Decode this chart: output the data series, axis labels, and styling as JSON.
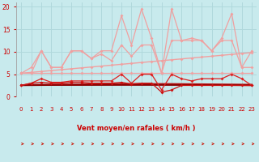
{
  "xlabel": "Vent moyen/en rafales ( km/h )",
  "bg_color": "#c8eaed",
  "grid_color": "#b0d8dc",
  "xlim": [
    -0.5,
    23.5
  ],
  "ylim": [
    0,
    21
  ],
  "yticks": [
    0,
    5,
    10,
    15,
    20
  ],
  "xticks": [
    0,
    1,
    2,
    3,
    4,
    5,
    6,
    7,
    8,
    9,
    10,
    11,
    12,
    13,
    14,
    15,
    16,
    17,
    18,
    19,
    20,
    21,
    22,
    23
  ],
  "series": [
    {
      "label": "rafales_spike",
      "color": "#f0a0a0",
      "lw": 0.9,
      "marker": "D",
      "ms": 2.0,
      "values": [
        5.2,
        6.5,
        10.2,
        6.5,
        6.5,
        10.2,
        10.2,
        8.5,
        10.2,
        10.2,
        18.0,
        11.5,
        19.5,
        13.0,
        5.2,
        19.5,
        12.5,
        13.0,
        12.5,
        10.2,
        13.0,
        18.5,
        6.5,
        10.2
      ]
    },
    {
      "label": "rafales_avg",
      "color": "#f0a0a0",
      "lw": 0.9,
      "marker": "D",
      "ms": 2.0,
      "values": [
        5.2,
        5.2,
        10.2,
        6.5,
        6.5,
        10.2,
        10.2,
        8.5,
        9.5,
        8.0,
        11.5,
        9.0,
        11.5,
        11.5,
        5.2,
        12.5,
        12.5,
        12.5,
        12.5,
        10.2,
        12.5,
        12.5,
        6.5,
        6.5
      ]
    },
    {
      "label": "rafales_trend",
      "color": "#f0a0a0",
      "lw": 1.0,
      "marker": "D",
      "ms": 2.0,
      "values": [
        5.2,
        5.4,
        5.6,
        5.8,
        6.0,
        6.2,
        6.4,
        6.6,
        6.8,
        7.0,
        7.2,
        7.4,
        7.6,
        7.8,
        8.0,
        8.2,
        8.4,
        8.6,
        8.8,
        9.0,
        9.2,
        9.4,
        9.6,
        9.8
      ]
    },
    {
      "label": "vent_flat",
      "color": "#f0a0a0",
      "lw": 0.9,
      "marker": "D",
      "ms": 2.0,
      "values": [
        5.2,
        5.2,
        5.2,
        5.2,
        5.2,
        5.2,
        5.2,
        5.2,
        5.2,
        5.2,
        5.2,
        5.2,
        5.2,
        5.2,
        5.2,
        5.2,
        5.2,
        5.2,
        5.2,
        5.2,
        5.2,
        5.2,
        5.2,
        5.2
      ]
    },
    {
      "label": "vent_moyen",
      "color": "#dd2222",
      "lw": 0.9,
      "marker": "D",
      "ms": 2.0,
      "values": [
        2.5,
        3.0,
        4.0,
        3.2,
        3.2,
        3.5,
        3.5,
        3.5,
        3.5,
        3.5,
        5.0,
        3.0,
        5.0,
        5.0,
        1.5,
        5.0,
        4.0,
        3.5,
        4.0,
        4.0,
        4.0,
        5.0,
        4.0,
        2.5
      ]
    },
    {
      "label": "vent_min",
      "color": "#cc1111",
      "lw": 0.9,
      "marker": "D",
      "ms": 2.0,
      "values": [
        2.5,
        3.0,
        3.2,
        3.0,
        3.0,
        3.2,
        3.2,
        3.0,
        3.0,
        3.0,
        3.2,
        2.8,
        3.0,
        3.0,
        1.0,
        1.5,
        2.5,
        2.5,
        2.5,
        2.5,
        2.5,
        2.5,
        2.5,
        2.5
      ]
    },
    {
      "label": "trend_dark1",
      "color": "#bb1111",
      "lw": 1.2,
      "marker": null,
      "ms": 0,
      "values": [
        2.6,
        2.65,
        2.7,
        2.72,
        2.74,
        2.76,
        2.78,
        2.8,
        2.82,
        2.84,
        2.86,
        2.86,
        2.86,
        2.86,
        2.86,
        2.86,
        2.84,
        2.82,
        2.8,
        2.78,
        2.76,
        2.74,
        2.72,
        2.7
      ]
    },
    {
      "label": "trend_dark2",
      "color": "#991111",
      "lw": 1.2,
      "marker": null,
      "ms": 0,
      "values": [
        2.5,
        2.52,
        2.54,
        2.56,
        2.58,
        2.6,
        2.62,
        2.64,
        2.66,
        2.68,
        2.7,
        2.7,
        2.7,
        2.7,
        2.68,
        2.66,
        2.64,
        2.62,
        2.6,
        2.58,
        2.56,
        2.54,
        2.52,
        2.5
      ]
    },
    {
      "label": "trend_dark3",
      "color": "#880000",
      "lw": 1.2,
      "marker": null,
      "ms": 0,
      "values": [
        2.5,
        2.5,
        2.5,
        2.5,
        2.5,
        2.5,
        2.5,
        2.5,
        2.5,
        2.5,
        2.5,
        2.5,
        2.5,
        2.5,
        2.5,
        2.5,
        2.5,
        2.5,
        2.5,
        2.5,
        2.5,
        2.5,
        2.5,
        2.5
      ]
    }
  ],
  "arrows_x": [
    0,
    1,
    2,
    3,
    4,
    5,
    6,
    7,
    8,
    9,
    10,
    11,
    12,
    13,
    14,
    15,
    16,
    17,
    18,
    19,
    20,
    21,
    22,
    23
  ],
  "xlabel_color": "#cc0000",
  "tick_color": "#cc0000",
  "arrow_color": "#cc1100"
}
